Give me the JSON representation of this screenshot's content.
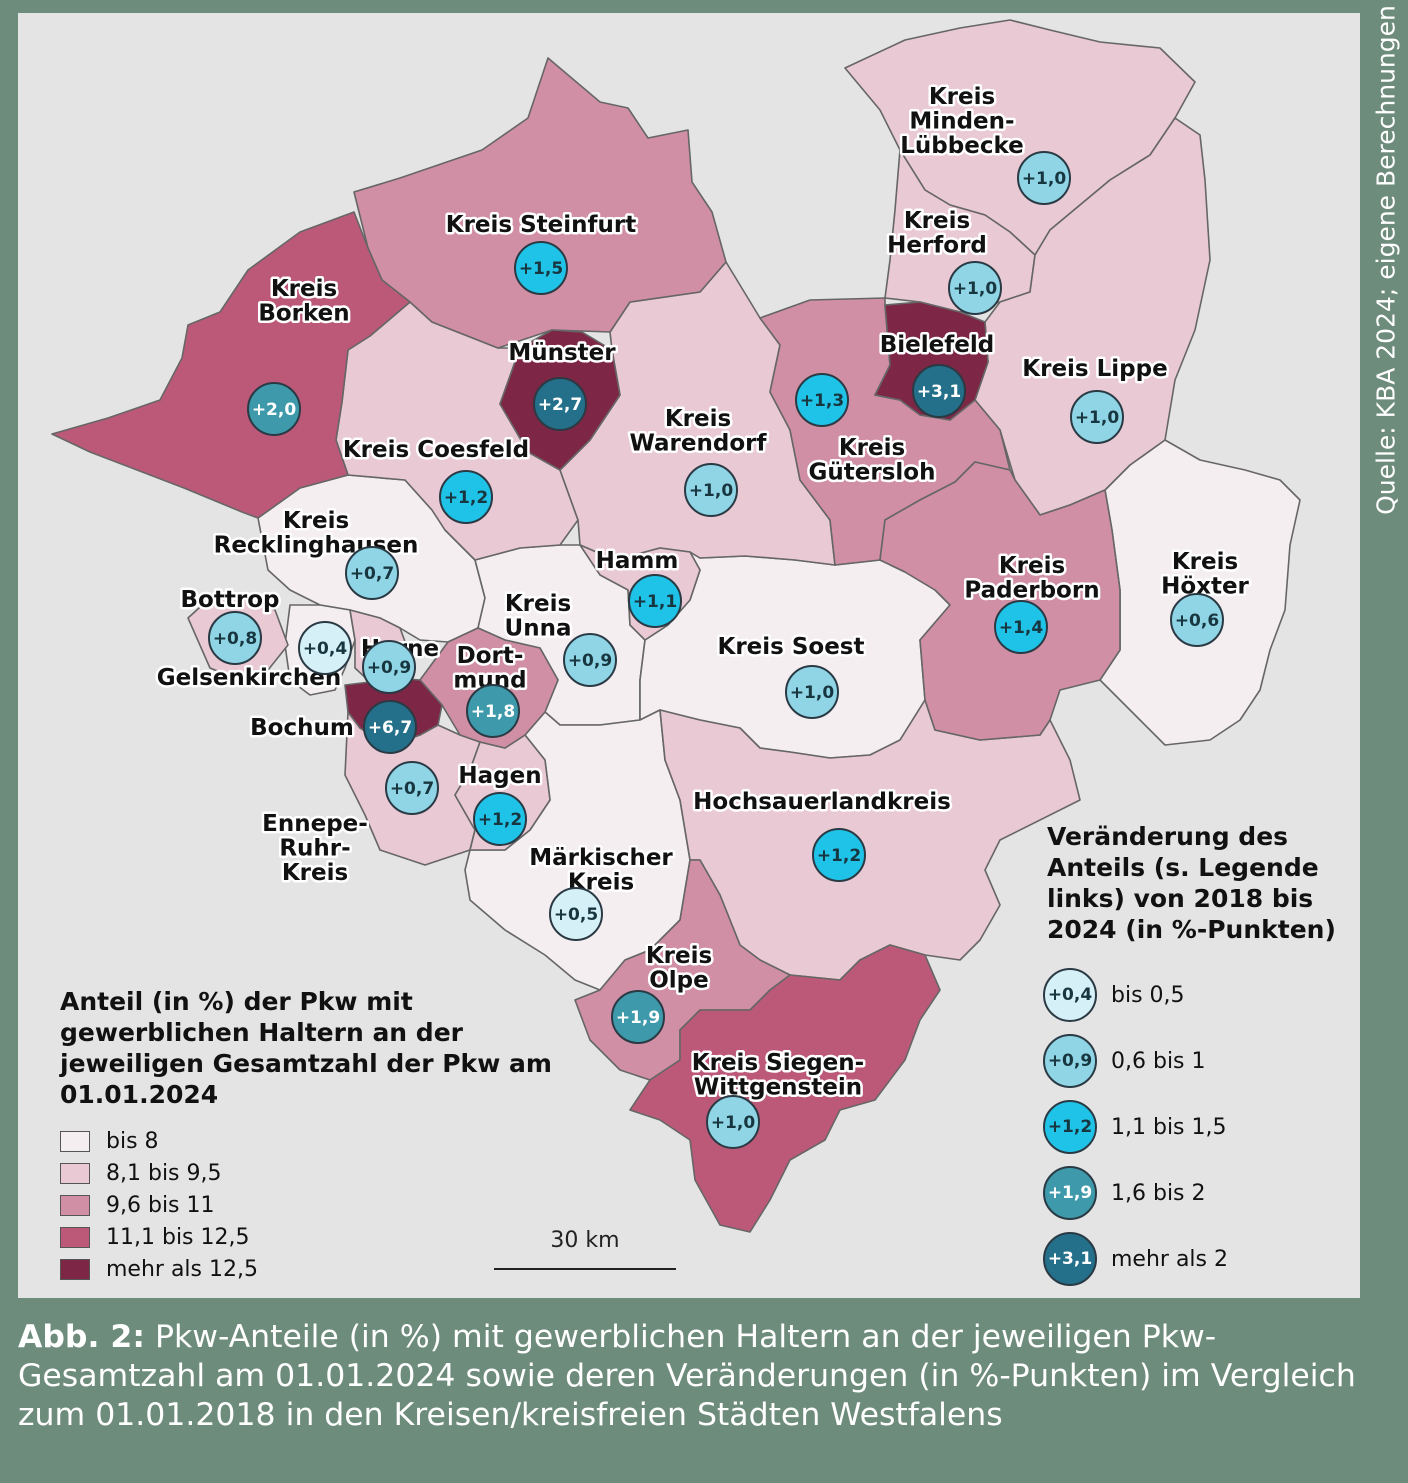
{
  "source_note": "Quelle: KBA 2024; eigene Berechnungen",
  "colors": {
    "share_classes": [
      "#f5eef1",
      "#e9c9d3",
      "#d18fa5",
      "#bc5979",
      "#7d2645"
    ],
    "change_classes": [
      "#d6f0f7",
      "#8fd5e6",
      "#1fc3e8",
      "#3e9aab",
      "#24708a"
    ]
  },
  "regions": [
    {
      "name": "Kreis Steinfurt",
      "lines": [
        "Kreis Steinfurt"
      ],
      "share_class": 2,
      "change": "+1,5",
      "change_class": 2
    },
    {
      "name": "Kreis Borken",
      "lines": [
        "Kreis",
        "Borken"
      ],
      "share_class": 3,
      "change": "+2,0",
      "change_class": 3
    },
    {
      "name": "Münster",
      "lines": [
        "Münster"
      ],
      "share_class": 4,
      "change": "+2,7",
      "change_class": 4
    },
    {
      "name": "Kreis Coesfeld",
      "lines": [
        "Kreis Coesfeld"
      ],
      "share_class": 1,
      "change": "+1,2",
      "change_class": 2
    },
    {
      "name": "Kreis Warendorf",
      "lines": [
        "Kreis",
        "Warendorf"
      ],
      "share_class": 1,
      "change": "+1,0",
      "change_class": 1
    },
    {
      "name": "Kreis Minden-Lübbecke",
      "lines": [
        "Kreis",
        "Minden-",
        "Lübbecke"
      ],
      "share_class": 1,
      "change": "+1,0",
      "change_class": 1
    },
    {
      "name": "Kreis Herford",
      "lines": [
        "Kreis",
        "Herford"
      ],
      "share_class": 1,
      "change": "+1,0",
      "change_class": 1
    },
    {
      "name": "Bielefeld",
      "lines": [
        "Bielefeld"
      ],
      "share_class": 4,
      "change": "+3,1",
      "change_class": 4
    },
    {
      "name": "Kreis Gütersloh",
      "lines": [
        "Kreis",
        "Gütersloh"
      ],
      "share_class": 2,
      "change": "+1,3",
      "change_class": 2
    },
    {
      "name": "Kreis Lippe",
      "lines": [
        "Kreis Lippe"
      ],
      "share_class": 1,
      "change": "+1,0",
      "change_class": 1
    },
    {
      "name": "Kreis Recklinghausen",
      "lines": [
        "Kreis",
        "Recklinghausen"
      ],
      "share_class": 0,
      "change": "+0,7",
      "change_class": 1
    },
    {
      "name": "Bottrop",
      "lines": [
        "Bottrop"
      ],
      "share_class": 1,
      "change": "+0,8",
      "change_class": 1
    },
    {
      "name": "Gelsenkirchen",
      "lines": [
        "Gelsenkirchen"
      ],
      "share_class": 0,
      "change": "+0,4",
      "change_class": 0
    },
    {
      "name": "Herne",
      "lines": [
        "Herne"
      ],
      "share_class": 1,
      "change": "+0,9",
      "change_class": 1
    },
    {
      "name": "Bochum",
      "lines": [
        "Bochum"
      ],
      "share_class": 4,
      "change": "+6,7",
      "change_class": 4
    },
    {
      "name": "Dortmund",
      "lines": [
        "Dort-",
        "mund"
      ],
      "share_class": 2,
      "change": "+1,8",
      "change_class": 3
    },
    {
      "name": "Kreis Unna",
      "lines": [
        "Kreis",
        "Unna"
      ],
      "share_class": 0,
      "change": "+0,9",
      "change_class": 1
    },
    {
      "name": "Hamm",
      "lines": [
        "Hamm"
      ],
      "share_class": 1,
      "change": "+1,1",
      "change_class": 2
    },
    {
      "name": "Kreis Soest",
      "lines": [
        "Kreis Soest"
      ],
      "share_class": 0,
      "change": "+1,0",
      "change_class": 1
    },
    {
      "name": "Kreis Paderborn",
      "lines": [
        "Kreis",
        "Paderborn"
      ],
      "share_class": 2,
      "change": "+1,4",
      "change_class": 2
    },
    {
      "name": "Kreis Höxter",
      "lines": [
        "Kreis",
        "Höxter"
      ],
      "share_class": 0,
      "change": "+0,6",
      "change_class": 1
    },
    {
      "name": "Ennepe-Ruhr-Kreis",
      "lines": [
        "Ennepe-",
        "Ruhr-",
        "Kreis"
      ],
      "share_class": 1,
      "change": "+0,7",
      "change_class": 1
    },
    {
      "name": "Hagen",
      "lines": [
        "Hagen"
      ],
      "share_class": 1,
      "change": "+1,2",
      "change_class": 2
    },
    {
      "name": "Märkischer Kreis",
      "lines": [
        "Märkischer",
        "Kreis"
      ],
      "share_class": 0,
      "change": "+0,5",
      "change_class": 0
    },
    {
      "name": "Hochsauerlandkreis",
      "lines": [
        "Hochsauerlandkreis"
      ],
      "share_class": 1,
      "change": "+1,2",
      "change_class": 2
    },
    {
      "name": "Kreis Olpe",
      "lines": [
        "Kreis",
        "Olpe"
      ],
      "share_class": 2,
      "change": "+1,9",
      "change_class": 3
    },
    {
      "name": "Kreis Siegen-Wittgenstein",
      "lines": [
        "Kreis Siegen-",
        "Wittgenstein"
      ],
      "share_class": 3,
      "change": "+1,0",
      "change_class": 1
    }
  ],
  "legend_share": {
    "title": [
      "Anteil (in %) der Pkw mit",
      "gewerblichen Haltern an der",
      "jeweiligen Gesamtzahl der Pkw am",
      "01.01.2024"
    ],
    "items": [
      {
        "label": "bis 8",
        "class": 0
      },
      {
        "label": "8,1 bis 9,5",
        "class": 1
      },
      {
        "label": "9,6 bis 11",
        "class": 2
      },
      {
        "label": "11,1 bis 12,5",
        "class": 3
      },
      {
        "label": "mehr als 12,5",
        "class": 4
      }
    ]
  },
  "legend_change": {
    "title": [
      "Veränderung des",
      "Anteils (s. Legende",
      "links) von 2018 bis",
      "2024 (in %-Punkten)"
    ],
    "items": [
      {
        "sample": "+0,4",
        "label": "bis 0,5",
        "class": 0
      },
      {
        "sample": "+0,9",
        "label": "0,6 bis 1",
        "class": 1
      },
      {
        "sample": "+1,2",
        "label": "1,1 bis 1,5",
        "class": 2
      },
      {
        "sample": "+1,9",
        "label": "1,6 bis 2",
        "class": 3
      },
      {
        "sample": "+3,1",
        "label": "mehr als 2",
        "class": 4
      }
    ]
  },
  "scale_label": "30 km",
  "caption": {
    "prefix": "Abb. 2:",
    "text": "Pkw-Anteile (in %) mit gewerblichen Haltern an der jeweiligen Pkw-Gesamtzahl am 01.01.2024 sowie deren Veränderungen (in %-Punkten) im Vergleich zum 01.01.2018 in den Kreisen/kreisfreien Städten Westfalens"
  }
}
